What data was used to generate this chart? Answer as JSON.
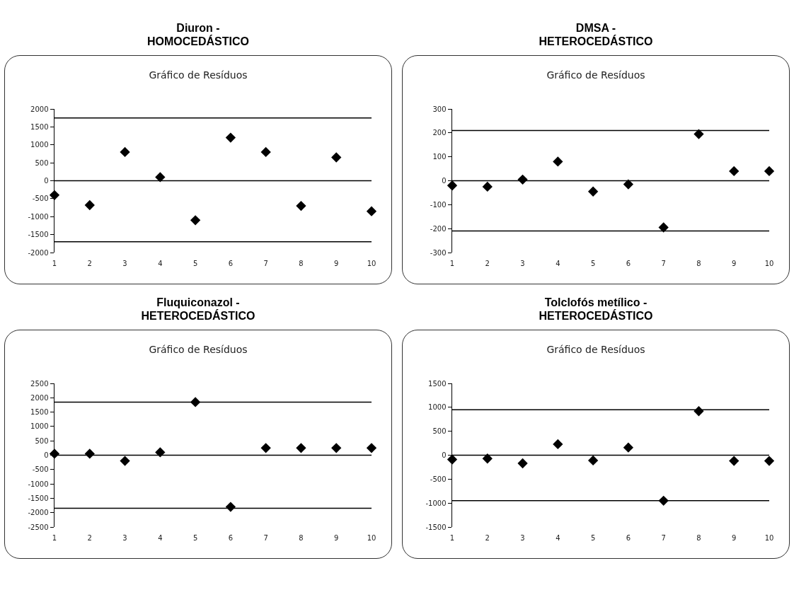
{
  "chart_data": [
    {
      "type": "scatter",
      "title": "Diuron -\nHOMOCEDÁSTICO",
      "subtitle": "Gráfico de Resíduos",
      "categories": [
        "1",
        "2",
        "3",
        "4",
        "5",
        "6",
        "7",
        "8",
        "9",
        "10"
      ],
      "series": [
        {
          "color": "#000000",
          "values": [
            -400,
            -680,
            800,
            100,
            -1100,
            1200,
            800,
            -700,
            650,
            -850
          ]
        }
      ],
      "ylim": [
        -2000,
        2000
      ],
      "yticks": [
        -2000,
        -1500,
        -1000,
        -500,
        0,
        500,
        1000,
        1500,
        2000
      ],
      "ref_lines": [
        {
          "axis": "y",
          "value": 1750,
          "color": "#000000"
        },
        {
          "axis": "y",
          "value": 0,
          "color": "#000000"
        },
        {
          "axis": "y",
          "value": -1700,
          "color": "#000000"
        }
      ],
      "grid": false,
      "marker": "diamond"
    },
    {
      "type": "scatter",
      "title": "DMSA -\nHETEROCEDÁSTICO",
      "subtitle": "Gráfico de Resíduos",
      "categories": [
        "1",
        "2",
        "3",
        "4",
        "5",
        "6",
        "7",
        "8",
        "9",
        "10"
      ],
      "series": [
        {
          "color": "#000000",
          "values": [
            -20,
            -25,
            5,
            80,
            -45,
            -15,
            -195,
            195,
            40,
            40
          ]
        }
      ],
      "ylim": [
        -300,
        300
      ],
      "yticks": [
        -300,
        -200,
        -100,
        0,
        100,
        200,
        300
      ],
      "ref_lines": [
        {
          "axis": "y",
          "value": 210,
          "color": "#000000"
        },
        {
          "axis": "y",
          "value": 0,
          "color": "#000000"
        },
        {
          "axis": "y",
          "value": -210,
          "color": "#000000"
        }
      ],
      "grid": false,
      "marker": "diamond"
    },
    {
      "type": "scatter",
      "title": "Fluquiconazol -\nHETEROCEDÁSTICO",
      "subtitle": "Gráfico de Resíduos",
      "categories": [
        "1",
        "2",
        "3",
        "4",
        "5",
        "6",
        "7",
        "8",
        "9",
        "10"
      ],
      "series": [
        {
          "color": "#000000",
          "values": [
            50,
            50,
            -200,
            100,
            1850,
            -1800,
            250,
            250,
            250,
            250
          ]
        }
      ],
      "ylim": [
        -2500,
        2500
      ],
      "yticks": [
        -2500,
        -2000,
        -1500,
        -1000,
        -500,
        0,
        500,
        1000,
        1500,
        2000,
        2500
      ],
      "ref_lines": [
        {
          "axis": "y",
          "value": 1850,
          "color": "#000000"
        },
        {
          "axis": "y",
          "value": 0,
          "color": "#000000"
        },
        {
          "axis": "y",
          "value": -1850,
          "color": "#000000"
        }
      ],
      "grid": false,
      "marker": "diamond"
    },
    {
      "type": "scatter",
      "title": "Tolclofós metílico -\nHETEROCEDÁSTICO",
      "subtitle": "Gráfico de Resíduos",
      "categories": [
        "1",
        "2",
        "3",
        "4",
        "5",
        "6",
        "7",
        "8",
        "9",
        "10"
      ],
      "series": [
        {
          "color": "#000000",
          "values": [
            -90,
            -70,
            -170,
            230,
            -110,
            160,
            -950,
            920,
            -120,
            -120
          ]
        }
      ],
      "ylim": [
        -1500,
        1500
      ],
      "yticks": [
        -1500,
        -1000,
        -500,
        0,
        500,
        1000,
        1500
      ],
      "ref_lines": [
        {
          "axis": "y",
          "value": 950,
          "color": "#000000"
        },
        {
          "axis": "y",
          "value": 0,
          "color": "#000000"
        },
        {
          "axis": "y",
          "value": -950,
          "color": "#000000"
        }
      ],
      "grid": false,
      "marker": "diamond"
    }
  ]
}
